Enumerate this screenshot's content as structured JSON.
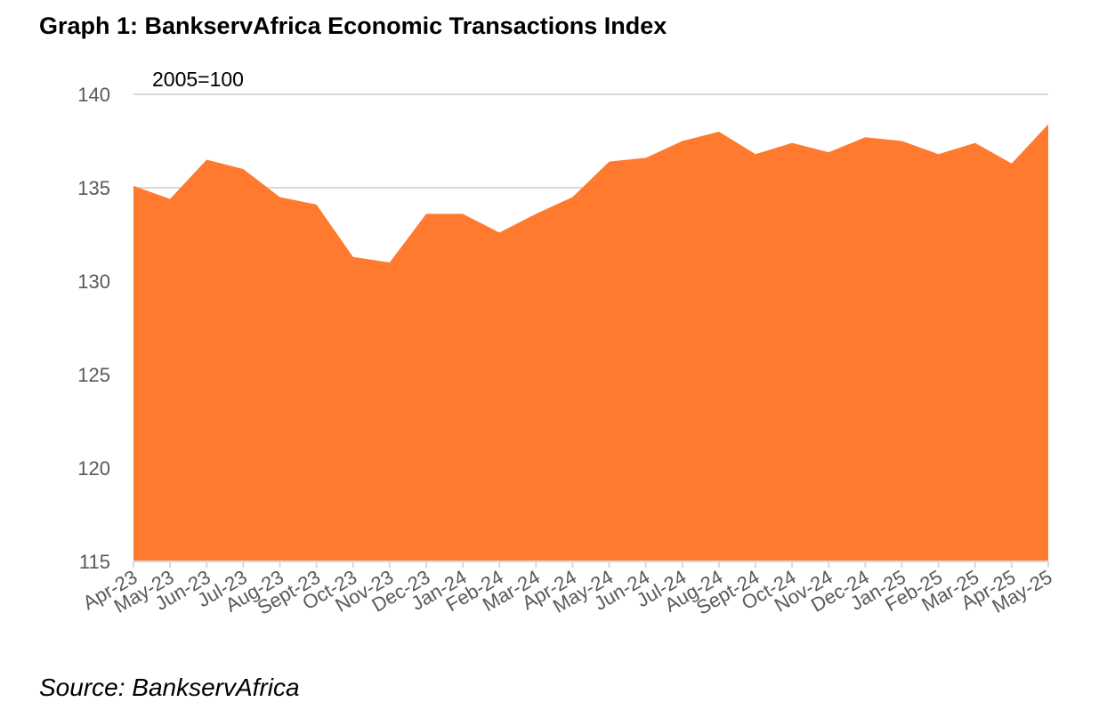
{
  "chart_data": {
    "type": "area",
    "title": "Graph 1: BankservAfrica Economic Transactions Index",
    "unit_label": "2005=100",
    "source": "Source: BankservAfrica",
    "categories": [
      "Apr-23",
      "May-23",
      "Jun-23",
      "Jul-23",
      "Aug-23",
      "Sept-23",
      "Oct-23",
      "Nov-23",
      "Dec-23",
      "Jan-24",
      "Feb-24",
      "Mar-24",
      "Apr-24",
      "May-24",
      "Jun-24",
      "Jul-24",
      "Aug-24",
      "Sept-24",
      "Oct-24",
      "Nov-24",
      "Dec-24",
      "Jan-25",
      "Feb-25",
      "Mar-25",
      "Apr-25",
      "May-25"
    ],
    "series": [
      {
        "values": [
          135.1,
          134.4,
          136.5,
          136.0,
          134.5,
          134.1,
          131.3,
          131.0,
          133.6,
          133.6,
          132.6,
          133.6,
          134.5,
          136.4,
          136.6,
          137.5,
          138.0,
          136.8,
          137.4,
          136.9,
          137.7,
          137.5,
          136.8,
          137.4,
          136.3,
          138.4
        ]
      }
    ],
    "ylim": [
      115,
      140
    ],
    "yticks": [
      115,
      120,
      125,
      130,
      135,
      140
    ],
    "grid": true,
    "color": "#FF7A2F"
  }
}
